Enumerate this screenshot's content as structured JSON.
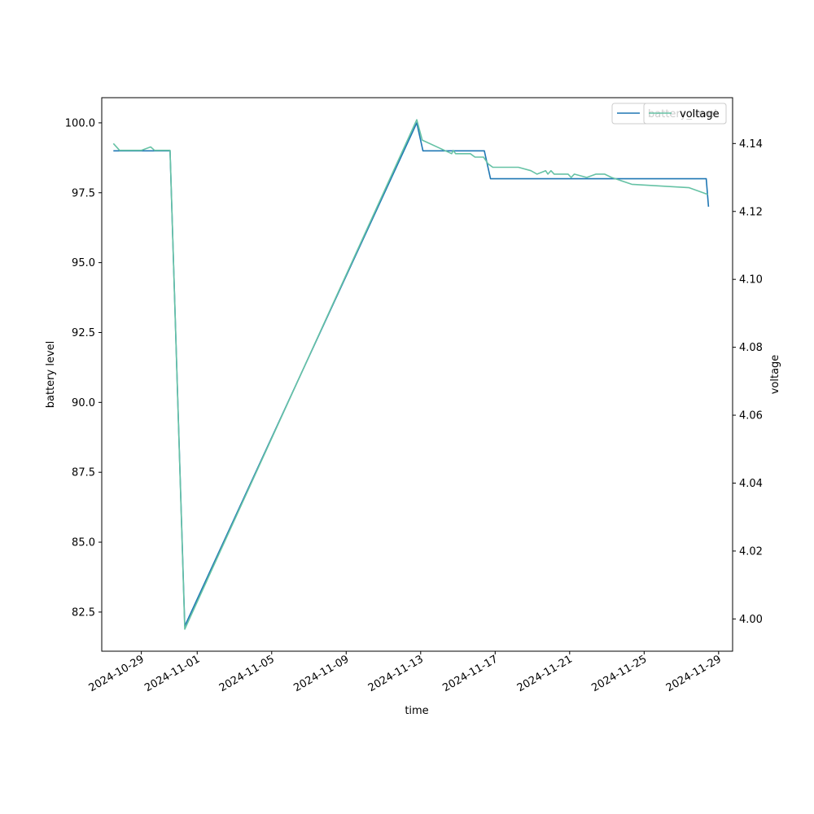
{
  "chart_data": {
    "type": "line",
    "xlabel": "time",
    "ylabel": "battery level",
    "y2label": "voltage",
    "xlim": [
      "2024-10-26T21:00",
      "2024-11-29T18:00"
    ],
    "ylim": [
      81.1,
      100.9
    ],
    "y2lim": [
      3.9905,
      4.1535
    ],
    "x_ticks": [
      "2024-10-29",
      "2024-11-01",
      "2024-11-05",
      "2024-11-09",
      "2024-11-13",
      "2024-11-17",
      "2024-11-21",
      "2024-11-25",
      "2024-11-29"
    ],
    "y_ticks": [
      "82.5",
      "85.0",
      "87.5",
      "90.0",
      "92.5",
      "95.0",
      "97.5",
      "100.0"
    ],
    "y2_ticks": [
      "4.00",
      "4.02",
      "4.04",
      "4.06",
      "4.08",
      "4.10",
      "4.12",
      "4.14"
    ],
    "grid": false,
    "legend": {
      "placement": "upper-right",
      "entries": [
        "battery_level",
        "voltage"
      ]
    },
    "series": [
      {
        "name": "battery_level",
        "axis": "left",
        "color": "#1f77b4",
        "points": [
          [
            "2024-10-27T12:00",
            99
          ],
          [
            "2024-10-30T10:00",
            99
          ],
          [
            "2024-10-30T13:00",
            99
          ],
          [
            "2024-10-31T08:00",
            82
          ],
          [
            "2024-11-12T19:00",
            100
          ],
          [
            "2024-11-13T03:00",
            99
          ],
          [
            "2024-11-16T10:00",
            99
          ],
          [
            "2024-11-16T18:00",
            98
          ],
          [
            "2024-11-28T08:00",
            98
          ],
          [
            "2024-11-28T11:00",
            97
          ]
        ]
      },
      {
        "name": "voltage",
        "axis": "right",
        "color": "#66c2a5",
        "points": [
          [
            "2024-10-27T12:00",
            4.14
          ],
          [
            "2024-10-27T20:00",
            4.138
          ],
          [
            "2024-10-28T06:00",
            4.138
          ],
          [
            "2024-10-29T00:00",
            4.138
          ],
          [
            "2024-10-29T12:00",
            4.139
          ],
          [
            "2024-10-29T17:00",
            4.138
          ],
          [
            "2024-10-30T13:00",
            4.138
          ],
          [
            "2024-10-31T08:00",
            3.997
          ],
          [
            "2024-11-12T19:00",
            4.147
          ],
          [
            "2024-11-13T02:00",
            4.141
          ],
          [
            "2024-11-14T16:00",
            4.137
          ],
          [
            "2024-11-14T18:00",
            4.138
          ],
          [
            "2024-11-14T21:00",
            4.137
          ],
          [
            "2024-11-15T16:00",
            4.137
          ],
          [
            "2024-11-15T22:00",
            4.136
          ],
          [
            "2024-11-16T09:00",
            4.136
          ],
          [
            "2024-11-16T15:00",
            4.134
          ],
          [
            "2024-11-16T21:00",
            4.133
          ],
          [
            "2024-11-17T22:00",
            4.133
          ],
          [
            "2024-11-18T06:00",
            4.133
          ],
          [
            "2024-11-18T22:00",
            4.132
          ],
          [
            "2024-11-19T06:00",
            4.131
          ],
          [
            "2024-11-19T17:00",
            4.132
          ],
          [
            "2024-11-19T20:00",
            4.131
          ],
          [
            "2024-11-20T00:00",
            4.132
          ],
          [
            "2024-11-20T04:00",
            4.131
          ],
          [
            "2024-11-20T22:00",
            4.131
          ],
          [
            "2024-11-21T02:00",
            4.13
          ],
          [
            "2024-11-21T06:00",
            4.131
          ],
          [
            "2024-11-21T22:00",
            4.13
          ],
          [
            "2024-11-22T10:00",
            4.131
          ],
          [
            "2024-11-22T21:00",
            4.131
          ],
          [
            "2024-11-23T06:00",
            4.13
          ],
          [
            "2024-11-24T08:00",
            4.128
          ],
          [
            "2024-11-27T10:00",
            4.127
          ],
          [
            "2024-11-27T22:00",
            4.126
          ],
          [
            "2024-11-28T10:00",
            4.125
          ]
        ]
      }
    ]
  }
}
